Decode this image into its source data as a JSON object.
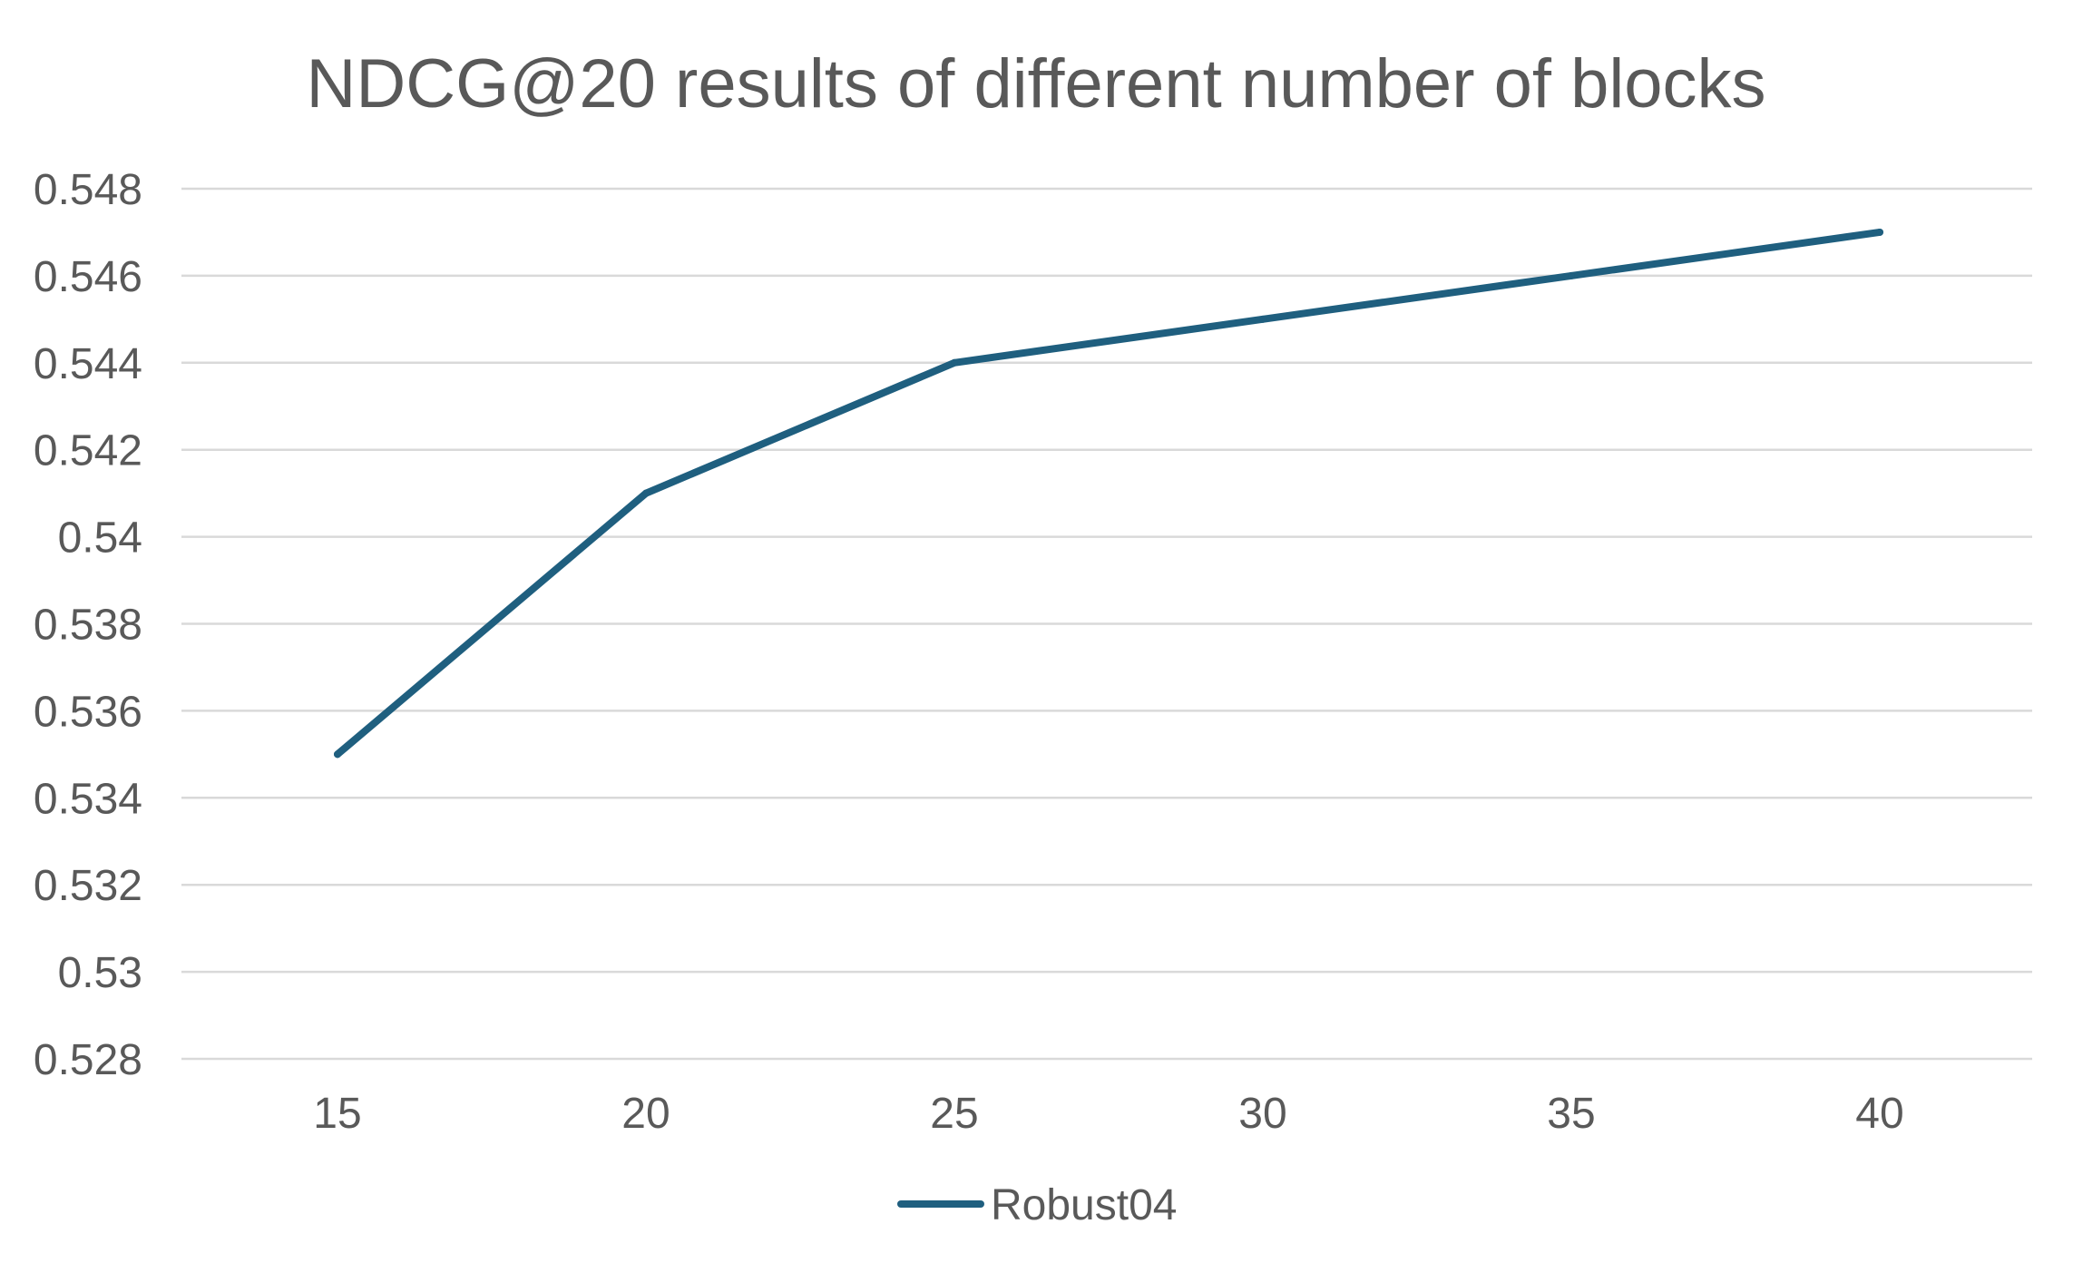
{
  "chart_data": {
    "type": "line",
    "title": "NDCG@20 results of different number of blocks",
    "xlabel": "",
    "ylabel": "",
    "categories": [
      "15",
      "20",
      "25",
      "30",
      "35",
      "40"
    ],
    "series": [
      {
        "name": "Robust04",
        "color": "#1f5f7f",
        "values": [
          0.535,
          0.541,
          0.544,
          0.545,
          0.546,
          0.547
        ]
      }
    ],
    "ylim": [
      0.528,
      0.548
    ],
    "yticks": [
      "0.528",
      "0.53",
      "0.532",
      "0.534",
      "0.536",
      "0.538",
      "0.54",
      "0.542",
      "0.544",
      "0.546",
      "0.548"
    ],
    "grid": true,
    "legend": "bottom"
  }
}
